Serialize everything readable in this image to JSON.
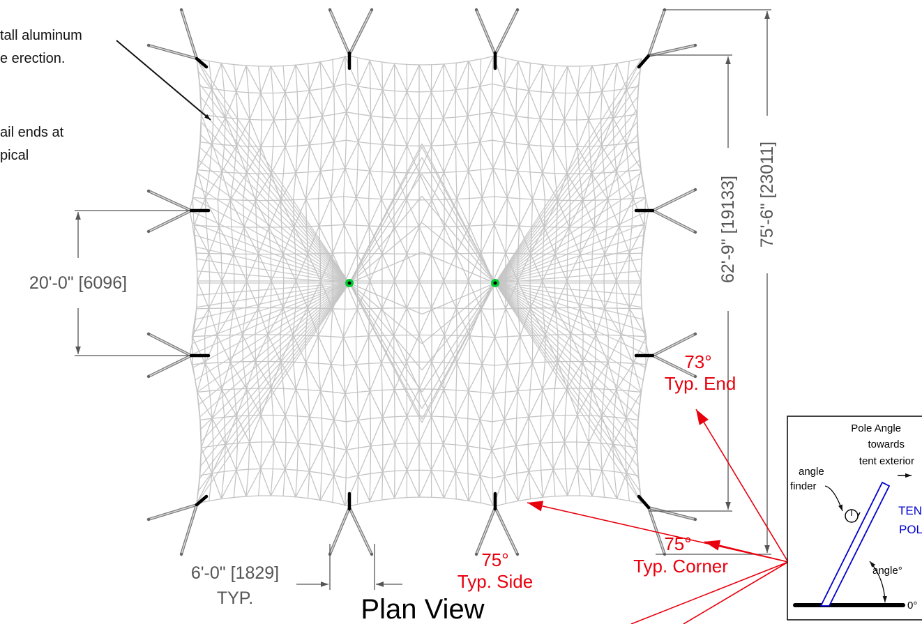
{
  "notes": {
    "note_1": [
      "tall aluminum",
      "e erection."
    ],
    "note_2": [
      "ail ends at",
      "pical"
    ]
  },
  "dimensions": {
    "side_spacing": "20'-0\" [6096]",
    "inner_length": "62'-9\" [19133]",
    "overall_length": "75'-6\" [23011]",
    "pole_spread": "6'-0\" [1829]",
    "pole_spread_suffix": "TYP."
  },
  "angles": {
    "end": {
      "value": "73°",
      "label": "Typ. End"
    },
    "corner": {
      "value": "75°",
      "label": "Typ. Corner"
    },
    "side": {
      "value": "75°",
      "label": "Typ. Side"
    }
  },
  "title": "Plan View",
  "inset": {
    "pole_angle": "Pole Angle",
    "towards": "towards",
    "tent_exterior": "tent exterior",
    "angle": "angle",
    "finder": "finder",
    "tent": "TENT",
    "pole": "POLE",
    "angle_deg": "angle°",
    "zero_deg": "0°"
  },
  "colors": {
    "mesh": "#c4c4c4",
    "dimension": "#555555",
    "callout": "#e8000d",
    "pole": "#0000cc",
    "peak": "#00cc33"
  }
}
